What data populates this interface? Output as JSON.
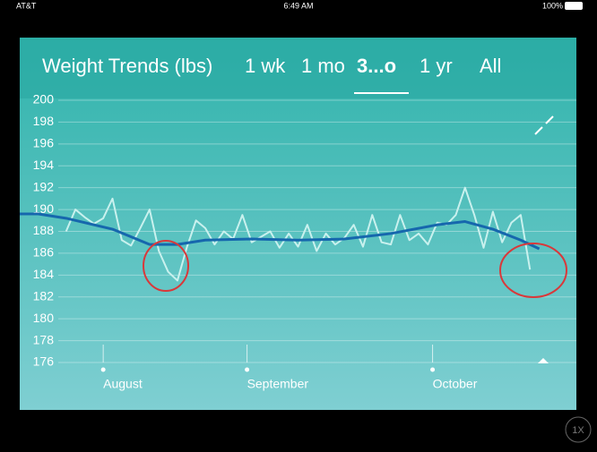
{
  "status_bar": {
    "carrier": "AT&T",
    "time": "6:49 AM",
    "battery": "100%"
  },
  "tabs": [
    "1 wk",
    "1 mo",
    "3...o",
    "1 yr",
    "All"
  ],
  "zoom_button": "1X",
  "chart_data": {
    "type": "line",
    "title": "Weight Trends (lbs)",
    "xlim": [
      0,
      120
    ],
    "xticks": [
      {
        "value": 18,
        "label": "August"
      },
      {
        "value": 49,
        "label": "September"
      },
      {
        "value": 89,
        "label": "October"
      }
    ],
    "ylim": [
      176,
      200
    ],
    "yticks": [
      176,
      178,
      180,
      182,
      184,
      186,
      188,
      190,
      192,
      194,
      196,
      198,
      200
    ],
    "grid": true,
    "series": [
      {
        "color": "#c9f1ee",
        "x": [
          10,
          12,
          14,
          16,
          18,
          20,
          22,
          24,
          26,
          28,
          30,
          32,
          34,
          36,
          38,
          40,
          42,
          44,
          46,
          48,
          50,
          52,
          54,
          56,
          58,
          60,
          62,
          64,
          66,
          68,
          70,
          72,
          74,
          76,
          78,
          80,
          82,
          84,
          86,
          88,
          90,
          92,
          94,
          96,
          98,
          100,
          102,
          104,
          106,
          108,
          110
        ],
        "values": [
          188,
          190,
          189.3,
          188.7,
          189.2,
          191,
          187.2,
          186.7,
          188.3,
          190,
          186.2,
          184.3,
          183.5,
          186.5,
          189,
          188.3,
          186.8,
          188,
          187.3,
          189.5,
          187,
          187.5,
          188,
          186.5,
          187.8,
          186.6,
          188.6,
          186.2,
          187.8,
          186.8,
          187.4,
          188.6,
          186.6,
          189.5,
          187,
          186.8,
          189.5,
          187.2,
          187.8,
          186.8,
          188.8,
          188.6,
          189.5,
          192,
          189.5,
          186.5,
          189.8,
          187,
          188.8,
          189.5,
          184.5
        ]
      },
      {
        "color": "#1667ad",
        "x": [
          0,
          4,
          10,
          20,
          28,
          34,
          40,
          50,
          60,
          70,
          80,
          90,
          96,
          102,
          108,
          112
        ],
        "values": [
          189.6,
          189.6,
          189.2,
          188.2,
          186.8,
          186.8,
          187.2,
          187.3,
          187.2,
          187.3,
          187.8,
          188.6,
          188.9,
          188.2,
          187.2,
          186.4
        ]
      }
    ]
  }
}
